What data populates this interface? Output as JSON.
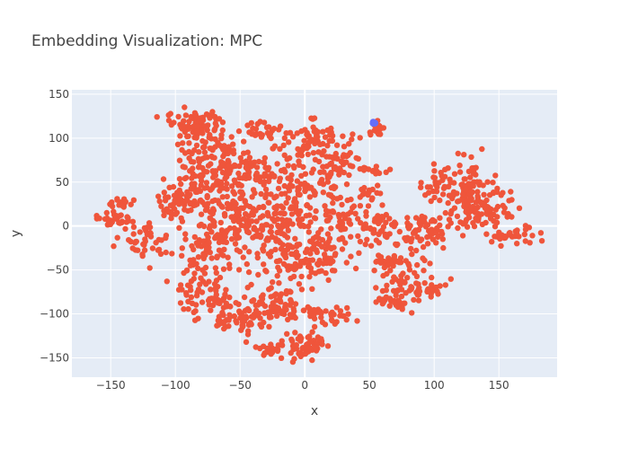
{
  "chart_data": {
    "type": "scatter",
    "title": "Embedding Visualization: MPC",
    "xlabel": "x",
    "ylabel": "y",
    "xlim": [
      -180,
      195
    ],
    "ylim": [
      -172,
      155
    ],
    "xticks": [
      -150,
      -100,
      -50,
      0,
      50,
      100,
      150
    ],
    "yticks": [
      -150,
      -100,
      -50,
      0,
      50,
      100,
      150
    ],
    "grid": true,
    "legend": "none",
    "colors": {
      "plot_background": "#E5ECF6",
      "grid": "#ffffff",
      "marker_main": "#EF553B",
      "marker_accent": "#636EFA"
    },
    "series": [
      {
        "color": "#EF553B",
        "clusters": [
          {
            "cx": -86,
            "cy": 115,
            "sx": 12,
            "sy": 10,
            "n": 80
          },
          {
            "cx": -70,
            "cy": 80,
            "sx": 14,
            "sy": 15,
            "n": 70
          },
          {
            "cx": -85,
            "cy": 45,
            "sx": 12,
            "sy": 15,
            "n": 50
          },
          {
            "cx": -95,
            "cy": 25,
            "sx": 8,
            "sy": 8,
            "n": 35
          },
          {
            "cx": -55,
            "cy": 50,
            "sx": 20,
            "sy": 20,
            "n": 90
          },
          {
            "cx": -50,
            "cy": 5,
            "sx": 22,
            "sy": 22,
            "n": 140
          },
          {
            "cx": -75,
            "cy": -30,
            "sx": 15,
            "sy": 15,
            "n": 60
          },
          {
            "cx": -80,
            "cy": -80,
            "sx": 12,
            "sy": 15,
            "n": 70
          },
          {
            "cx": -50,
            "cy": -105,
            "sx": 12,
            "sy": 10,
            "n": 55
          },
          {
            "cx": -25,
            "cy": -90,
            "sx": 12,
            "sy": 10,
            "n": 60
          },
          {
            "cx": -35,
            "cy": 110,
            "sx": 8,
            "sy": 6,
            "n": 25
          },
          {
            "cx": -20,
            "cy": 60,
            "sx": 18,
            "sy": 20,
            "n": 70
          },
          {
            "cx": -15,
            "cy": 0,
            "sx": 20,
            "sy": 20,
            "n": 90
          },
          {
            "cx": -15,
            "cy": -45,
            "sx": 15,
            "sy": 15,
            "n": 60
          },
          {
            "cx": 0,
            "cy": -135,
            "sx": 8,
            "sy": 8,
            "n": 60
          },
          {
            "cx": -25,
            "cy": -140,
            "sx": 6,
            "sy": 5,
            "n": 20
          },
          {
            "cx": 15,
            "cy": -100,
            "sx": 12,
            "sy": 6,
            "n": 40
          },
          {
            "cx": 10,
            "cy": 100,
            "sx": 14,
            "sy": 10,
            "n": 60
          },
          {
            "cx": 15,
            "cy": 50,
            "sx": 15,
            "sy": 15,
            "n": 60
          },
          {
            "cx": 25,
            "cy": 75,
            "sx": 8,
            "sy": 6,
            "n": 25
          },
          {
            "cx": 20,
            "cy": 0,
            "sx": 15,
            "sy": 18,
            "n": 60
          },
          {
            "cx": 10,
            "cy": -40,
            "sx": 12,
            "sy": 12,
            "n": 40
          },
          {
            "cx": -145,
            "cy": 8,
            "sx": 8,
            "sy": 5,
            "n": 30
          },
          {
            "cx": -140,
            "cy": 25,
            "sx": 5,
            "sy": 3,
            "n": 15
          },
          {
            "cx": -125,
            "cy": -20,
            "sx": 10,
            "sy": 10,
            "n": 40
          },
          {
            "cx": 55,
            "cy": 110,
            "sx": 3,
            "sy": 5,
            "n": 15
          },
          {
            "cx": 55,
            "cy": 62,
            "sx": 5,
            "sy": 3,
            "n": 15
          },
          {
            "cx": 50,
            "cy": 40,
            "sx": 5,
            "sy": 5,
            "n": 15
          },
          {
            "cx": 55,
            "cy": 5,
            "sx": 8,
            "sy": 6,
            "n": 25
          },
          {
            "cx": 70,
            "cy": -40,
            "sx": 12,
            "sy": 5,
            "n": 40
          },
          {
            "cx": 75,
            "cy": -10,
            "sx": 15,
            "sy": 10,
            "n": 50
          },
          {
            "cx": 80,
            "cy": -65,
            "sx": 15,
            "sy": 8,
            "n": 45
          },
          {
            "cx": 70,
            "cy": -85,
            "sx": 10,
            "sy": 5,
            "n": 30
          },
          {
            "cx": 95,
            "cy": -75,
            "sx": 4,
            "sy": 3,
            "n": 12
          },
          {
            "cx": 100,
            "cy": 0,
            "sx": 10,
            "sy": 10,
            "n": 35
          },
          {
            "cx": 120,
            "cy": 40,
            "sx": 12,
            "sy": 20,
            "n": 110
          },
          {
            "cx": 140,
            "cy": 20,
            "sx": 12,
            "sy": 12,
            "n": 60
          },
          {
            "cx": 160,
            "cy": -10,
            "sx": 10,
            "sy": 5,
            "n": 35
          },
          {
            "cx": 100,
            "cy": 45,
            "sx": 6,
            "sy": 6,
            "n": 15
          }
        ]
      },
      {
        "color": "#636EFA",
        "clusters": [
          {
            "cx": 53,
            "cy": 118,
            "sx": 1.5,
            "sy": 1.2,
            "n": 4
          }
        ]
      }
    ]
  }
}
